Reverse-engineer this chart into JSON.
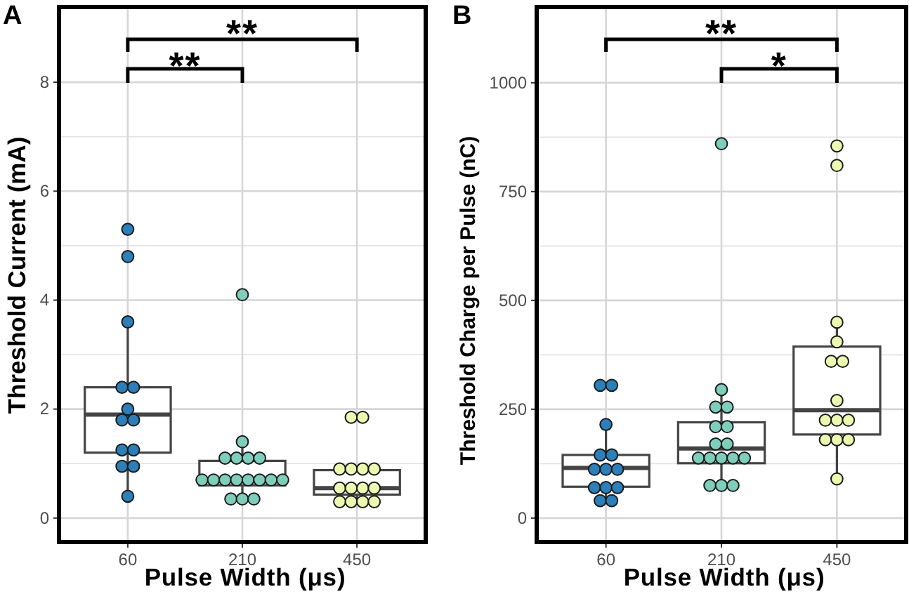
{
  "chart_data": [
    {
      "type": "box",
      "title": "A",
      "xlabel": "Pulse Width (μs)",
      "ylabel": "Threshold Current (mA)",
      "categories": [
        "60",
        "210",
        "450"
      ],
      "ylim": [
        -0.44,
        9.38
      ],
      "yticks": [
        0,
        2,
        4,
        6,
        8
      ],
      "grid": true,
      "marker": "circle",
      "boxes": [
        {
          "low": 0.4,
          "q1": 1.2,
          "median": 1.9,
          "q3": 2.4,
          "high": 3.6
        },
        {
          "low": 0.35,
          "q1": 0.6,
          "median": 0.7,
          "q3": 1.05,
          "high": 1.4
        },
        {
          "low": 0.3,
          "q1": 0.43,
          "median": 0.55,
          "q3": 0.88,
          "high": 0.9
        }
      ],
      "series": [
        {
          "type": "scatter",
          "color": "#2c7fb8",
          "x": [
            "60",
            "60",
            "60",
            "60",
            "60",
            "60",
            "60",
            "60",
            "60",
            "60",
            "60",
            "60",
            "60"
          ],
          "values": [
            5.3,
            4.8,
            3.6,
            2.4,
            2.4,
            2.0,
            1.8,
            1.8,
            1.25,
            1.25,
            0.95,
            0.95,
            0.4
          ]
        },
        {
          "type": "scatter",
          "color": "#7fcdbb",
          "x": [
            "210",
            "210",
            "210",
            "210",
            "210",
            "210",
            "210",
            "210",
            "210",
            "210",
            "210",
            "210",
            "210",
            "210",
            "210",
            "210",
            "210"
          ],
          "values": [
            4.1,
            1.4,
            1.1,
            1.1,
            1.1,
            1.1,
            0.7,
            0.7,
            0.7,
            0.7,
            0.7,
            0.7,
            0.7,
            0.7,
            0.35,
            0.35,
            0.35
          ]
        },
        {
          "type": "scatter",
          "color": "#edf8b1",
          "x": [
            "450",
            "450",
            "450",
            "450",
            "450",
            "450",
            "450",
            "450",
            "450",
            "450",
            "450",
            "450",
            "450",
            "450"
          ],
          "values": [
            1.85,
            1.85,
            0.9,
            0.9,
            0.9,
            0.9,
            0.55,
            0.55,
            0.55,
            0.55,
            0.3,
            0.3,
            0.3,
            0.3
          ]
        }
      ],
      "annotations": [
        "**",
        "**"
      ]
    },
    {
      "type": "box",
      "title": "B",
      "xlabel": "Pulse Width (μs)",
      "ylabel": "Threshold Charge per Pulse (nC)",
      "categories": [
        "60",
        "210",
        "450"
      ],
      "ylim": [
        -55,
        1174
      ],
      "yticks": [
        0,
        250,
        500,
        750,
        1000
      ],
      "grid": true,
      "marker": "circle",
      "boxes": [
        {
          "low": 40,
          "q1": 72,
          "median": 115,
          "q3": 145,
          "high": 215
        },
        {
          "low": 75,
          "q1": 126,
          "median": 160,
          "q3": 220,
          "high": 295
        },
        {
          "low": 90,
          "q1": 192,
          "median": 248,
          "q3": 394,
          "high": 450
        }
      ],
      "series": [
        {
          "type": "scatter",
          "color": "#2c7fb8",
          "x": [
            "60",
            "60",
            "60",
            "60",
            "60",
            "60",
            "60",
            "60",
            "60",
            "60",
            "60",
            "60",
            "60"
          ],
          "values": [
            305,
            305,
            215,
            145,
            145,
            112,
            112,
            112,
            70,
            70,
            70,
            40,
            40
          ]
        },
        {
          "type": "scatter",
          "color": "#7fcdbb",
          "x": [
            "210",
            "210",
            "210",
            "210",
            "210",
            "210",
            "210",
            "210",
            "210",
            "210",
            "210",
            "210",
            "210",
            "210",
            "210",
            "210"
          ],
          "values": [
            860,
            295,
            255,
            255,
            210,
            210,
            170,
            170,
            138,
            138,
            138,
            138,
            138,
            75,
            75,
            75
          ]
        },
        {
          "type": "scatter",
          "color": "#edf8b1",
          "x": [
            "450",
            "450",
            "450",
            "450",
            "450",
            "450",
            "450",
            "450",
            "450",
            "450",
            "450",
            "450",
            "450",
            "450"
          ],
          "values": [
            855,
            810,
            450,
            405,
            360,
            360,
            270,
            225,
            225,
            225,
            180,
            180,
            180,
            90
          ]
        }
      ],
      "annotations": [
        "**",
        "*"
      ]
    }
  ]
}
